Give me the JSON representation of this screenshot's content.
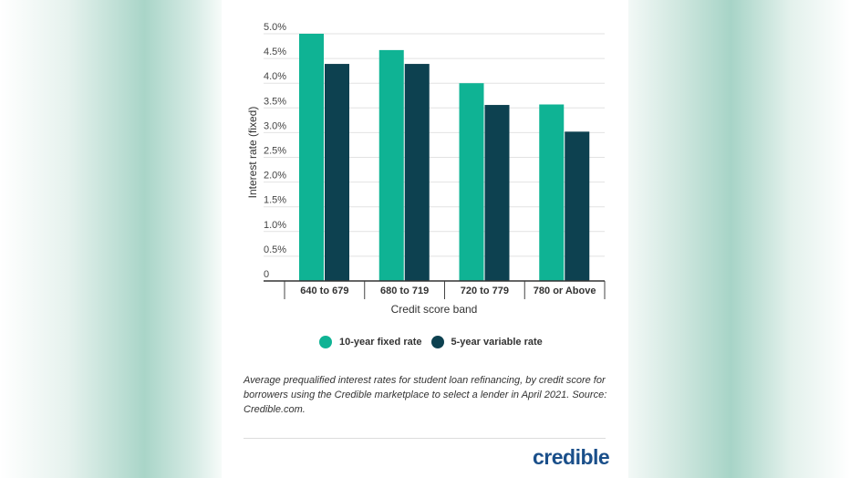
{
  "chart_data": {
    "type": "bar",
    "categories": [
      "640 to 679",
      "680 to 719",
      "720 to 779",
      "780 or Above"
    ],
    "series": [
      {
        "name": "10-year fixed rate",
        "values": [
          5.0,
          4.67,
          4.0,
          3.57
        ],
        "color": "#0fb394"
      },
      {
        "name": "5-year variable rate",
        "values": [
          4.39,
          4.39,
          3.56,
          3.02
        ],
        "color": "#0d4150"
      }
    ],
    "xlabel": "Credit score band",
    "ylabel": "Interest rate (fixed)",
    "ylim": [
      0,
      5.0
    ],
    "yticks": [
      "0",
      "0.5%",
      "1.0%",
      "1.5%",
      "2.0%",
      "2.5%",
      "3.0%",
      "3.5%",
      "4.0%",
      "4.5%",
      "5.0%"
    ],
    "grid": true,
    "legend_position": "bottom"
  },
  "caption": "Average prequalified interest rates for student loan refinancing, by credit score for borrowers using the Credible marketplace to select a lender in April 2021. Source: Credible.com.",
  "logo": "credible"
}
